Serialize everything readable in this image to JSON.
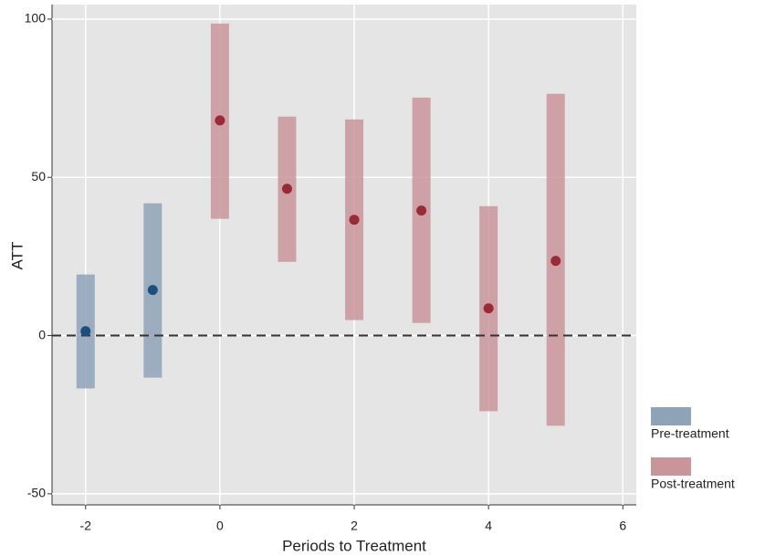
{
  "chart_data": {
    "type": "event-study",
    "x_label": "Periods to Treatment",
    "y_label": "ATT",
    "xlim": [
      -2.5,
      6.2
    ],
    "ylim": [
      -53.5,
      104.6
    ],
    "xticks": [
      -2,
      0,
      2,
      4,
      6
    ],
    "yticks": [
      -50,
      0,
      50,
      100
    ],
    "grid": true,
    "hline": 0,
    "legend": "right",
    "series": [
      {
        "name": "Pre-treatment",
        "color": "#8fa3b8",
        "point_color": "#1d4f7c",
        "x": [
          -2,
          -1
        ],
        "values": [
          1.4,
          14.4
        ],
        "lower": [
          -16.7,
          -13.3
        ],
        "upper": [
          19.3,
          41.8
        ]
      },
      {
        "name": "Post-treatment",
        "color": "#c9959b",
        "point_color": "#9a2a35",
        "x": [
          0,
          1,
          2,
          3,
          4,
          5
        ],
        "values": [
          68,
          46.4,
          36.6,
          39.5,
          8.6,
          23.6
        ],
        "lower": [
          36.9,
          23.3,
          4.9,
          4,
          -23.9,
          -28.5
        ],
        "upper": [
          98.6,
          69.2,
          68.3,
          75.2,
          40.9,
          76.4
        ]
      }
    ]
  }
}
